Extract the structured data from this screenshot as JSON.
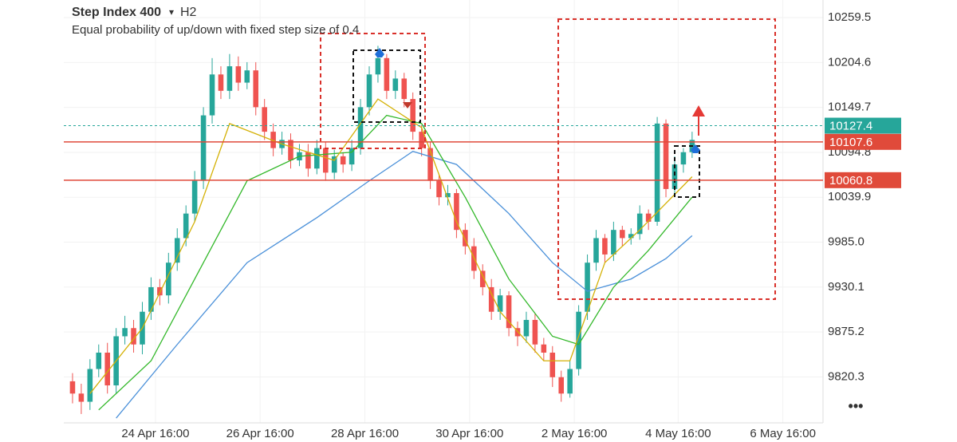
{
  "chart_data": {
    "type": "candlestick",
    "title": "Step Index 400",
    "title_marker": "▾",
    "timeframe": "H2",
    "subtitle": "Equal probability of up/down with fixed step size of 0.4",
    "more_button": "•••",
    "up_color": "#26a69a",
    "down_color": "#ef5350",
    "grid": true,
    "xlim": [
      -1,
      86
    ],
    "ylim": [
      9764.2,
      10281.0
    ],
    "yticks": [
      10259.5,
      10204.6,
      10149.7,
      10094.8,
      10039.9,
      {
        "value": 9985,
        "label": "9985.0"
      },
      9930.1,
      9875.2,
      9820.3
    ],
    "xticks": [
      {
        "value": 9.5,
        "label": "24 Apr 16:00"
      },
      {
        "value": 21.5,
        "label": "26 Apr 16:00"
      },
      {
        "value": 33.5,
        "label": "28 Apr 16:00"
      },
      {
        "value": 45.5,
        "label": "30 Apr 16:00"
      },
      {
        "value": 57.5,
        "label": "2 May 16:00"
      },
      {
        "value": 69.4,
        "label": "4 May 16:00"
      },
      {
        "value": 81.4,
        "label": "6 May 16:00"
      }
    ],
    "open": [
      9815,
      9800,
      9790,
      9830,
      9850,
      9810,
      9870,
      9880,
      9860,
      9900,
      9930,
      9920,
      9960,
      9990,
      10020,
      10060,
      10140,
      10190,
      10170,
      10200,
      10180,
      10195,
      10150,
      10120,
      10100,
      10110,
      10085,
      10095,
      10075,
      10100,
      10070,
      10090,
      10080,
      10100,
      10150,
      10190,
      10210,
      10170,
      10185,
      10160,
      10120,
      10100,
      10060,
      10040,
      10045,
      10000,
      9980,
      9950,
      9930,
      9900,
      9920,
      9880,
      9870,
      9890,
      9860,
      9850,
      9820,
      9800,
      9830,
      9900,
      9960,
      9990,
      9970,
      10000,
      9990,
      9995,
      10020,
      10010,
      10130,
      10050,
      10080,
      10095
    ],
    "high": [
      9825,
      9812,
      9842,
      9860,
      9862,
      9880,
      9895,
      9890,
      9912,
      9942,
      9940,
      9972,
      10002,
      10030,
      10072,
      10150,
      10210,
      10200,
      10215,
      10212,
      10205,
      10205,
      10160,
      10130,
      10120,
      10118,
      10105,
      10105,
      10110,
      10108,
      10098,
      10095,
      10110,
      10160,
      10200,
      10225,
      10215,
      10195,
      10192,
      10168,
      10128,
      10108,
      10068,
      10055,
      10050,
      10008,
      9990,
      9958,
      9940,
      9928,
      9925,
      9888,
      9900,
      9898,
      9868,
      9858,
      9828,
      9840,
      9908,
      9970,
      10000,
      9995,
      10010,
      10005,
      10002,
      10030,
      10025,
      10138,
      10135,
      10090,
      10100,
      10120
    ],
    "low": [
      9788,
      9775,
      9780,
      9820,
      9800,
      9800,
      9860,
      9850,
      9848,
      9890,
      9908,
      9910,
      9950,
      9980,
      10010,
      10050,
      10130,
      10160,
      10160,
      10170,
      10172,
      10140,
      10110,
      10090,
      10092,
      10075,
      10078,
      10065,
      10068,
      10060,
      10062,
      10070,
      10072,
      10092,
      10140,
      10180,
      10160,
      10160,
      10150,
      10110,
      10090,
      10050,
      10030,
      10030,
      9990,
      9970,
      9940,
      9920,
      9890,
      9890,
      9870,
      9858,
      9862,
      9850,
      9840,
      9808,
      9790,
      9795,
      9822,
      9890,
      9950,
      9960,
      9962,
      9980,
      9982,
      9988,
      10000,
      10005,
      10040,
      10042,
      10070,
      10088
    ],
    "close": [
      9800,
      9790,
      9830,
      9850,
      9810,
      9870,
      9880,
      9860,
      9900,
      9930,
      9920,
      9960,
      9990,
      10020,
      10060,
      10140,
      10190,
      10170,
      10200,
      10180,
      10195,
      10150,
      10120,
      10100,
      10110,
      10085,
      10095,
      10075,
      10100,
      10070,
      10090,
      10080,
      10100,
      10150,
      10190,
      10210,
      10170,
      10185,
      10160,
      10120,
      10100,
      10060,
      10040,
      10045,
      10000,
      9980,
      9950,
      9930,
      9900,
      9920,
      9880,
      9870,
      9890,
      9860,
      9850,
      9820,
      9800,
      9830,
      9900,
      9960,
      9990,
      9970,
      10000,
      9990,
      9995,
      10020,
      10010,
      10130,
      10050,
      10080,
      10095,
      10110
    ],
    "lines": [
      {
        "color": "#4a90d9",
        "x": [
          5,
          12,
          20,
          28,
          34,
          39,
          44,
          50,
          55,
          59,
          64,
          68,
          71
        ],
        "values": [
          9770,
          9860,
          9960,
          10015,
          10060,
          10096,
          10080,
          10020,
          9960,
          9925,
          9940,
          9965,
          9993
        ]
      },
      {
        "color": "#33b82a",
        "x": [
          3,
          9,
          15,
          20,
          26,
          32,
          36,
          40,
          45,
          50,
          55,
          58,
          62,
          66,
          71
        ],
        "values": [
          9780,
          9840,
          9960,
          10060,
          10090,
          10095,
          10140,
          10130,
          10040,
          9940,
          9870,
          9860,
          9930,
          9975,
          10040
        ]
      },
      {
        "color": "#d4b106",
        "x": [
          2,
          8,
          14,
          18,
          24,
          30,
          35,
          40,
          44,
          49,
          54,
          57,
          61,
          65,
          71
        ],
        "values": [
          9800,
          9880,
          10010,
          10130,
          10105,
          10085,
          10160,
          10125,
          10010,
          9900,
          9840,
          9840,
          9960,
          10000,
          10065
        ]
      }
    ],
    "price_lines": [
      {
        "value": 10127.4,
        "color": "#26a69a",
        "dashed": true
      },
      {
        "value": 10107.6,
        "color": "#e04a3a",
        "dashed": false
      },
      {
        "value": 10060.8,
        "color": "#e04a3a",
        "dashed": false
      }
    ]
  }
}
